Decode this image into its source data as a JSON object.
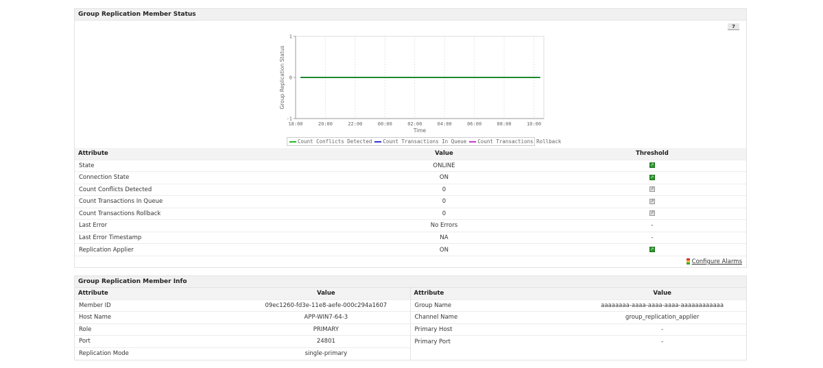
{
  "status_panel": {
    "title": "Group Replication Member Status",
    "period_button": "7",
    "columns": [
      "Attribute",
      "Value",
      "Threshold"
    ],
    "rows": [
      {
        "attribute": "State",
        "value": "ONLINE",
        "threshold": "on"
      },
      {
        "attribute": "Connection State",
        "value": "ON",
        "threshold": "on"
      },
      {
        "attribute": "Count Conflicts Detected",
        "value": "0",
        "threshold": "off"
      },
      {
        "attribute": "Count Transactions In Queue",
        "value": "0",
        "threshold": "off"
      },
      {
        "attribute": "Count Transactions Rollback",
        "value": "0",
        "threshold": "off"
      },
      {
        "attribute": "Last Error",
        "value": "No Errors",
        "threshold": "-"
      },
      {
        "attribute": "Last Error Timestamp",
        "value": "NA",
        "threshold": "-"
      },
      {
        "attribute": "Replication Applier",
        "value": "ON",
        "threshold": "on"
      }
    ],
    "configure_alarms": "Configure Alarms"
  },
  "chart_data": {
    "type": "line",
    "xlabel": "Time",
    "ylabel": "Group Replication Status",
    "xticks": [
      "18:00",
      "20:00",
      "22:00",
      "00:00",
      "02:00",
      "04:00",
      "06:00",
      "08:00",
      "10:00"
    ],
    "yticks": [
      "-1",
      "0",
      "1"
    ],
    "ylim": [
      -1,
      1
    ],
    "grid": true,
    "legend": "bottom",
    "x": [
      "18:20",
      "10:25"
    ],
    "series": [
      {
        "name": "Count Conflicts Detected",
        "color": "#22bb22",
        "values": [
          0,
          0
        ]
      },
      {
        "name": "Count Transactions In Queue",
        "color": "#3333cc",
        "values": [
          0,
          0
        ]
      },
      {
        "name": "Count Transactions Rollback",
        "color": "#cc33cc",
        "values": [
          0,
          0
        ]
      }
    ]
  },
  "info_panel": {
    "title": "Group Replication Member Info",
    "columns": [
      "Attribute",
      "Value"
    ],
    "left": [
      {
        "attribute": "Member ID",
        "value": "09ec1260-fd3e-11e8-aefe-000c294a1607"
      },
      {
        "attribute": "Host Name",
        "value": "APP-WIN7-64-3"
      },
      {
        "attribute": "Role",
        "value": "PRIMARY"
      },
      {
        "attribute": "Port",
        "value": "24801"
      },
      {
        "attribute": "Replication Mode",
        "value": "single-primary"
      }
    ],
    "right": [
      {
        "attribute": "Group Name",
        "value": "aaaaaaaa-aaaa-aaaa-aaaa-aaaaaaaaaaaa"
      },
      {
        "attribute": "Channel Name",
        "value": "group_replication_applier"
      },
      {
        "attribute": "Primary Host",
        "value": "-"
      },
      {
        "attribute": "Primary Port",
        "value": "-"
      }
    ]
  }
}
